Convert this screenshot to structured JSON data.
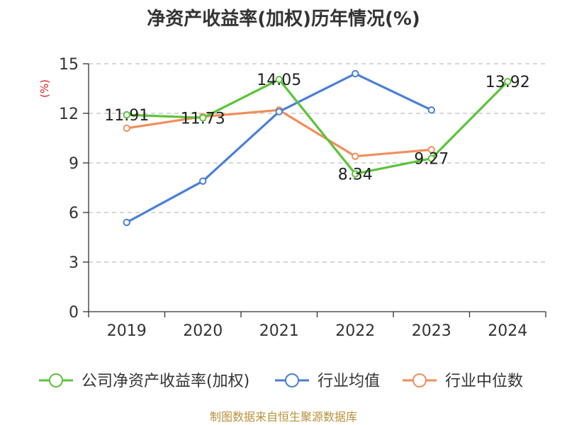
{
  "chart_data": {
    "type": "line",
    "title": "净资产收益率(加权)历年情况(%)",
    "ylabel": "(%)",
    "xlabel": "",
    "categories": [
      "2019",
      "2020",
      "2021",
      "2022",
      "2023",
      "2024"
    ],
    "ylim": [
      0,
      15
    ],
    "yticks": [
      0,
      3,
      6,
      9,
      12,
      15
    ],
    "grid": true,
    "legend_position": "bottom",
    "series": [
      {
        "name": "公司净资产收益率(加权)",
        "color": "#5cc33a",
        "values": [
          11.91,
          11.73,
          14.05,
          8.34,
          9.27,
          13.92
        ],
        "labels": [
          "11.91",
          "11.73",
          "14.05",
          "8.34",
          "9.27",
          "13.92"
        ]
      },
      {
        "name": "行业均值",
        "color": "#4a7fd8",
        "values": [
          5.4,
          7.9,
          12.1,
          14.4,
          12.2,
          null
        ]
      },
      {
        "name": "行业中位数",
        "color": "#f28e5a",
        "values": [
          11.1,
          11.8,
          12.2,
          9.4,
          9.8,
          null
        ]
      }
    ],
    "source": "制图数据来自恒生聚源数据库"
  }
}
